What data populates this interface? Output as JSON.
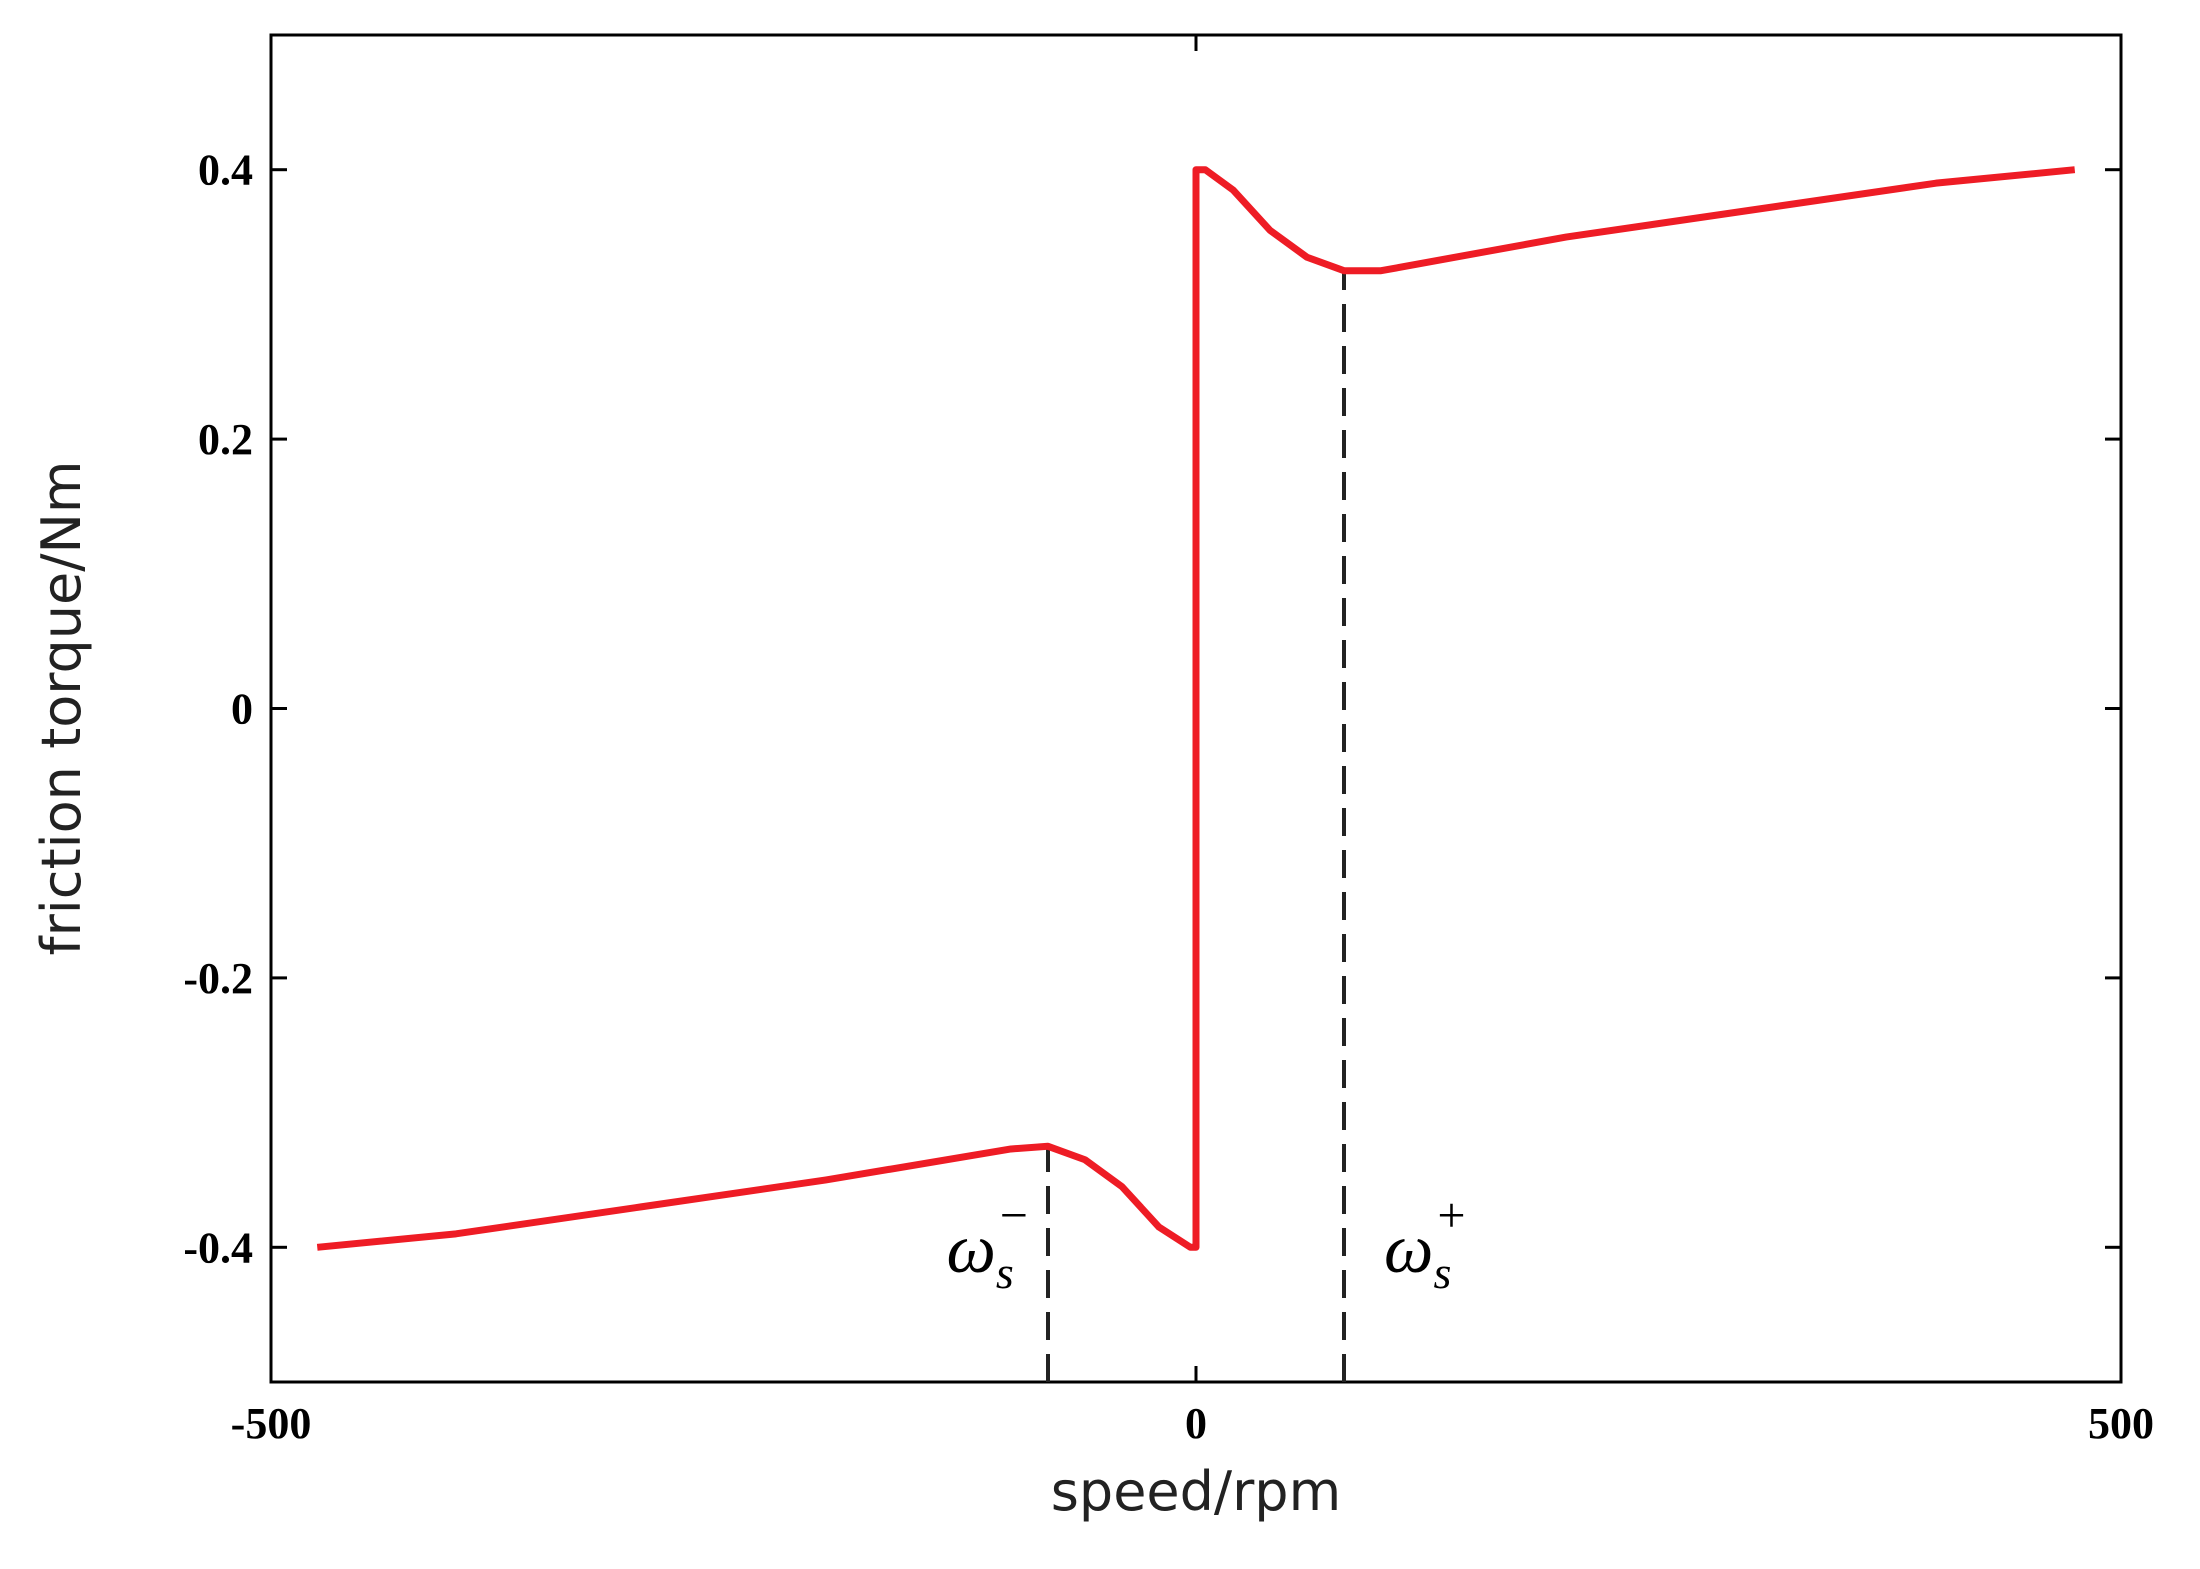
{
  "chart_data": {
    "type": "line",
    "x_label": "speed/rpm",
    "y_label": "friction torque/Nm",
    "xlim": [
      -500,
      500
    ],
    "ylim": [
      -0.5,
      0.5
    ],
    "xticks": [
      -500,
      0,
      500
    ],
    "yticks": [
      -0.4,
      -0.2,
      0,
      0.2,
      0.4
    ],
    "series": [
      {
        "color": "#ee1c25",
        "x": [
          -475,
          -400,
          -300,
          -200,
          -100,
          -80,
          -60,
          -40,
          -20,
          -3,
          0,
          0,
          5,
          20,
          40,
          60,
          80,
          100,
          200,
          300,
          400,
          475
        ],
        "values": [
          -0.4,
          -0.39,
          -0.37,
          -0.35,
          -0.327,
          -0.325,
          -0.335,
          -0.355,
          -0.385,
          -0.4,
          -0.4,
          0.4,
          0.4,
          0.385,
          0.355,
          0.335,
          0.325,
          0.325,
          0.35,
          0.37,
          0.39,
          0.4
        ]
      }
    ],
    "markers": [
      {
        "x": -80,
        "y": -0.325,
        "text": "ω",
        "sub": "s",
        "sup": "−"
      },
      {
        "x": 80,
        "y": 0.325,
        "text": "ω",
        "sub": "s",
        "sup": "+"
      }
    ]
  }
}
